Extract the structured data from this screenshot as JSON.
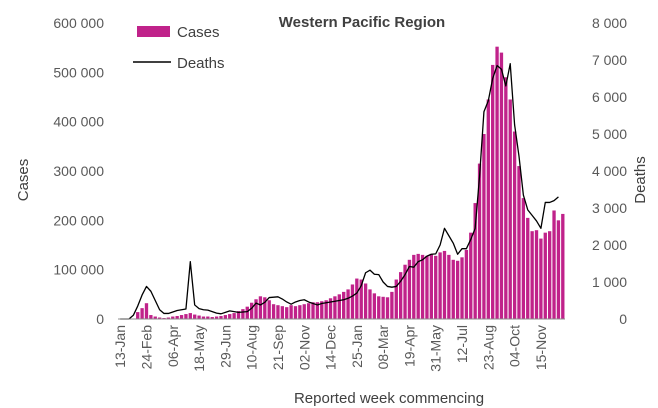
{
  "chart_data": {
    "type": "bar+line",
    "title": "Western Pacific Region",
    "xlabel": "Reported week commencing",
    "ylabel_left": "Cases",
    "ylabel_right": "Deaths",
    "ylim_left": [
      0,
      600000
    ],
    "ylim_right": [
      0,
      8000
    ],
    "yticks_left": [
      "0",
      "100 000",
      "200 000",
      "300 000",
      "400 000",
      "500 000",
      "600 000"
    ],
    "yticks_right": [
      "0",
      "1 000",
      "2 000",
      "3 000",
      "4 000",
      "5 000",
      "6 000",
      "7 000",
      "8 000"
    ],
    "xtick_labels": [
      "13-Jan",
      "24-Feb",
      "06-Apr",
      "18-May",
      "29-Jun",
      "10-Aug",
      "21-Sep",
      "02-Nov",
      "14-Dec",
      "25-Jan",
      "08-Mar",
      "19-Apr",
      "31-May",
      "12-Jul",
      "23-Aug",
      "04-Oct",
      "15-Nov"
    ],
    "grid": false,
    "legend_position": "top-left",
    "series": [
      {
        "name": "Cases",
        "type": "bar",
        "color": "#C0228A",
        "values": [
          0,
          0,
          0,
          500,
          14000,
          22000,
          32000,
          8000,
          5000,
          3000,
          2000,
          3000,
          5000,
          6000,
          8000,
          10000,
          12000,
          9000,
          7000,
          5000,
          5000,
          4000,
          5000,
          6000,
          8000,
          10000,
          12000,
          16000,
          20000,
          25000,
          33000,
          40000,
          46000,
          44000,
          38000,
          30000,
          28000,
          26000,
          24000,
          28000,
          26000,
          28000,
          30000,
          32000,
          34000,
          34000,
          36000,
          38000,
          42000,
          46000,
          50000,
          55000,
          60000,
          70000,
          82000,
          80000,
          72000,
          60000,
          52000,
          46000,
          45000,
          44000,
          55000,
          80000,
          95000,
          110000,
          120000,
          130000,
          132000,
          130000,
          128000,
          132000,
          128000,
          135000,
          138000,
          130000,
          120000,
          118000,
          125000,
          140000,
          175000,
          235000,
          315000,
          375000,
          445000,
          515000,
          552000,
          540000,
          490000,
          445000,
          380000,
          310000,
          245000,
          205000,
          178000,
          180000,
          163000,
          175000,
          178000,
          220000,
          200000,
          213000
        ]
      },
      {
        "name": "Deaths",
        "type": "line",
        "color": "#000000",
        "values": [
          0,
          0,
          0,
          100,
          350,
          650,
          880,
          750,
          500,
          250,
          150,
          150,
          190,
          230,
          250,
          270,
          1550,
          380,
          280,
          250,
          240,
          200,
          160,
          140,
          180,
          220,
          200,
          180,
          190,
          200,
          290,
          430,
          380,
          450,
          580,
          590,
          600,
          540,
          460,
          400,
          460,
          500,
          520,
          460,
          420,
          380,
          420,
          440,
          460,
          480,
          500,
          520,
          560,
          620,
          700,
          900,
          1250,
          1320,
          1210,
          1200,
          1000,
          880,
          860,
          880,
          1020,
          1200,
          1420,
          1400,
          1550,
          1600,
          1700,
          1750,
          1760,
          2000,
          2450,
          2250,
          2050,
          1750,
          1900,
          1900,
          2150,
          2450,
          3850,
          5600,
          5900,
          6500,
          6850,
          6750,
          6300,
          6900,
          5250,
          4400,
          3350,
          2950,
          2800,
          2650,
          2450,
          3150,
          3150,
          3200,
          3300
        ]
      }
    ]
  }
}
